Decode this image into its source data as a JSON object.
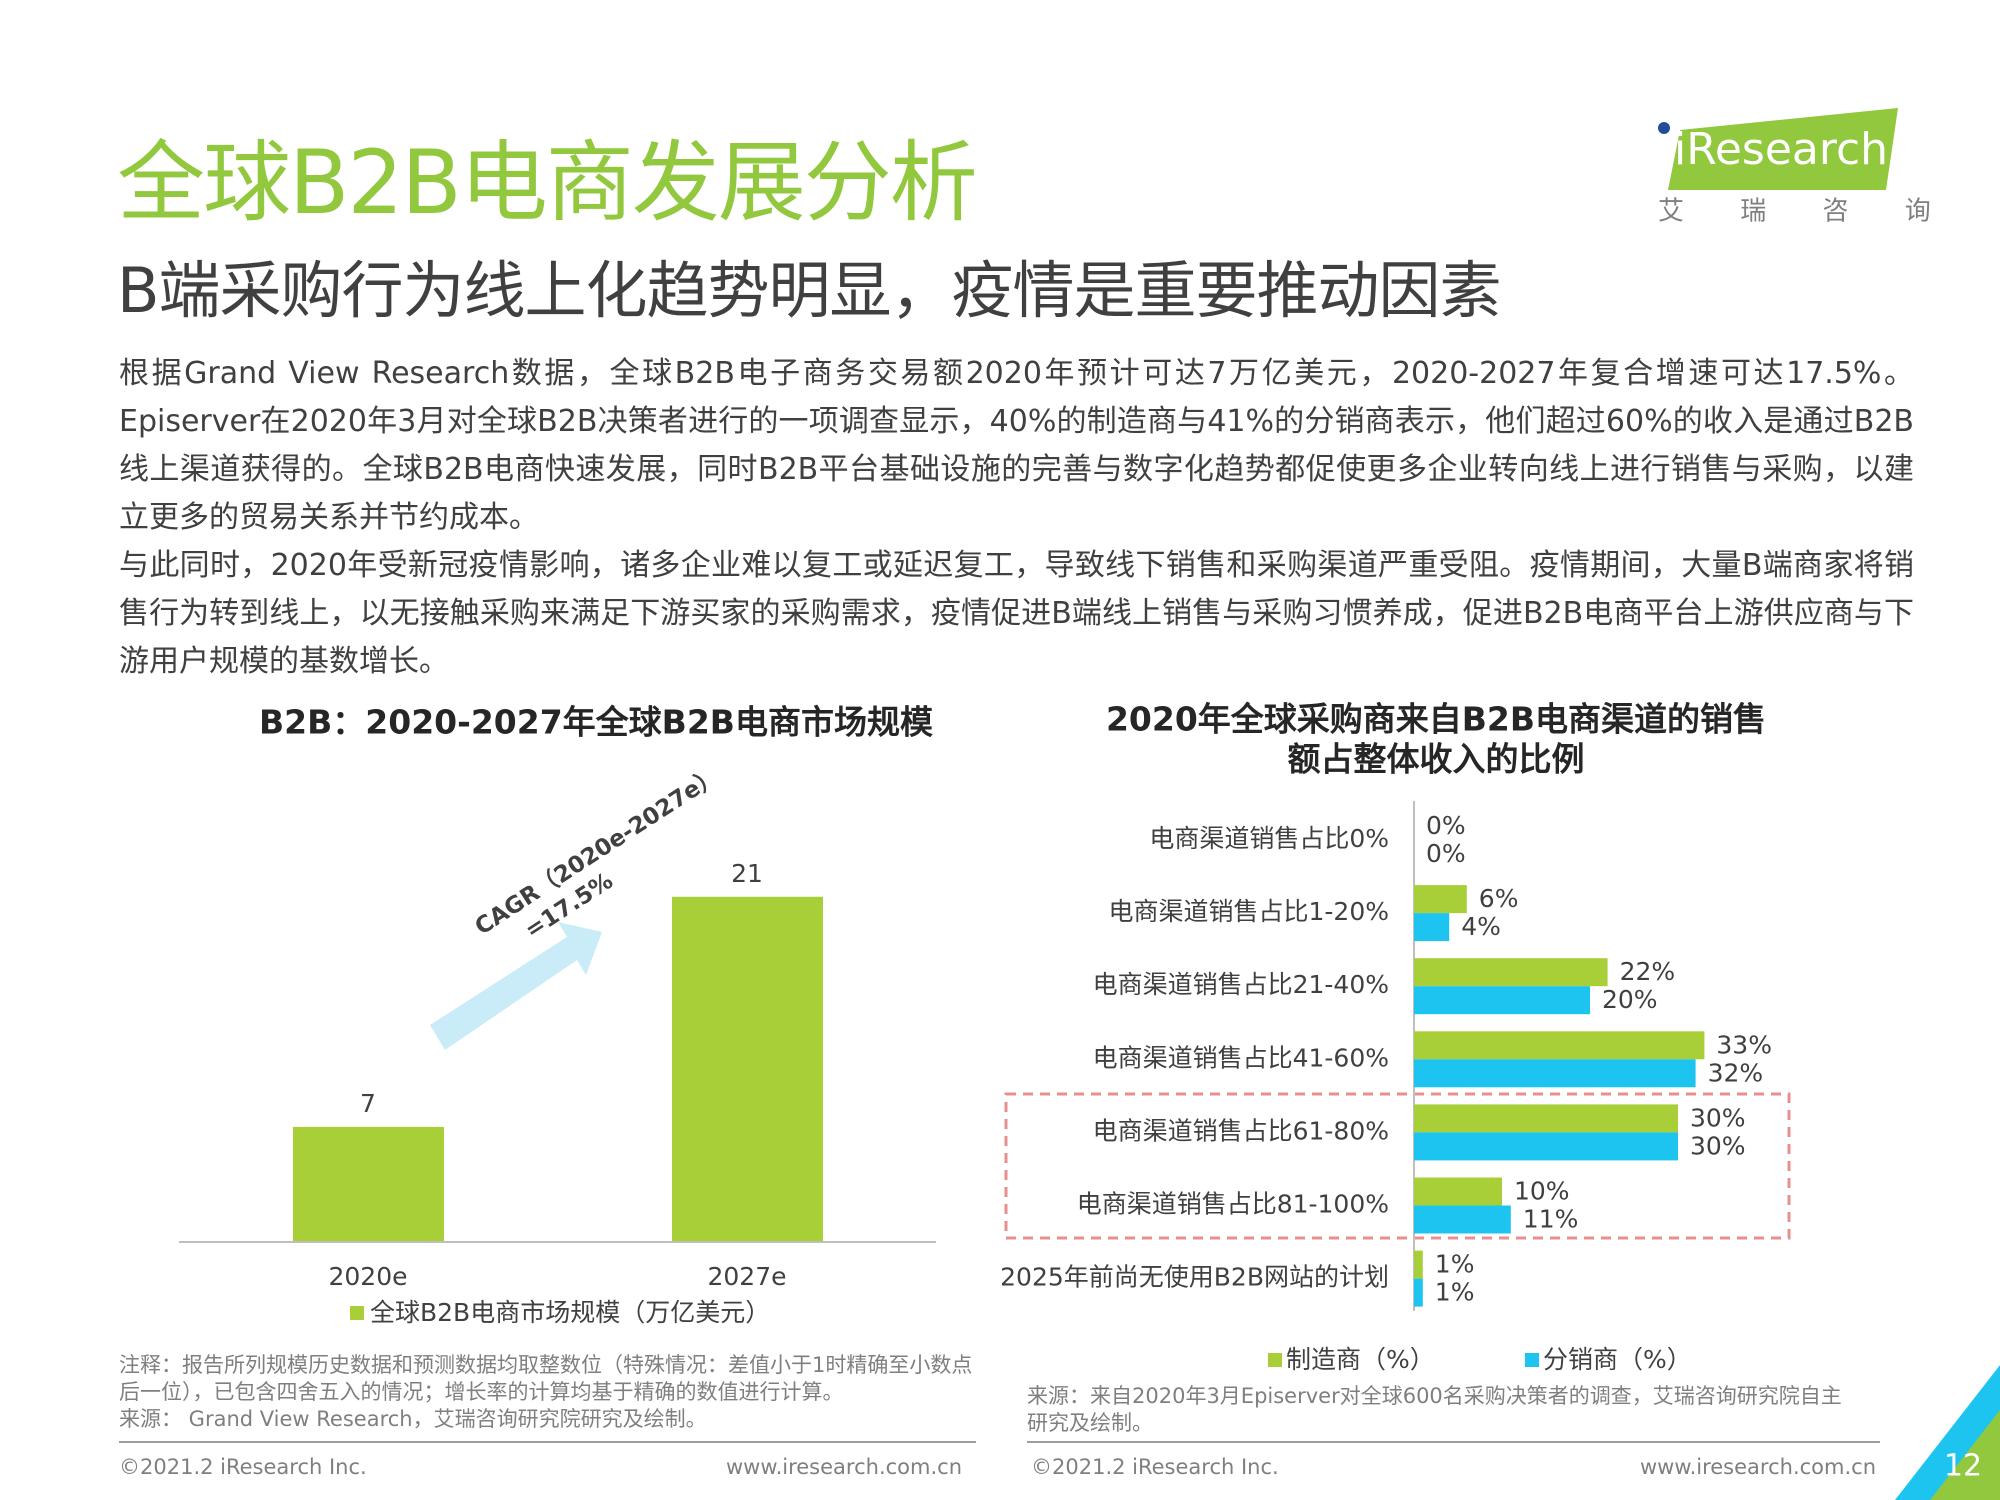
{
  "header": {
    "title": "全球B2B电商发展分析",
    "subtitle": "B端采购行为线上化趋势明显，疫情是重要推动因素",
    "logo": "iResearch",
    "logo_sub": "艾 瑞 咨 询"
  },
  "body": {
    "paragraphs": [
      "根据Grand View Research数据，全球B2B电子商务交易额2020年预计可达7万亿美元，2020-2027年复合增速可达17.5%。Episerver在2020年3月对全球B2B决策者进行的一项调查显示，40%的制造商与41%的分销商表示，他们超过60%的收入是通过B2B线上渠道获得的。全球B2B电商快速发展，同时B2B平台基础设施的完善与数字化趋势都促使更多企业转向线上进行销售与采购，以建立更多的贸易关系并节约成本。",
      "与此同时，2020年受新冠疫情影响，诸多企业难以复工或延迟复工，导致线下销售和采购渠道严重受阻。疫情期间，大量B端商家将销售行为转到线上，以无接触采购来满足下游买家的采购需求，疫情促进B端线上销售与采购习惯养成，促进B2B电商平台上游供应商与下游用户规模的基数增长。"
    ]
  },
  "chart_data": [
    {
      "type": "bar",
      "title": "B2B：2020-2027年全球B2B电商市场规模",
      "categories": [
        "2020e",
        "2027e"
      ],
      "series": [
        {
          "name": "全球B2B电商市场规模（万亿美元）",
          "color": "#a9cf38",
          "values": [
            7,
            21
          ]
        }
      ],
      "annotation": [
        "CAGR（2020e-2027e）",
        "=17.5%"
      ],
      "ylim": [
        0,
        25
      ]
    },
    {
      "type": "bar",
      "orientation": "horizontal",
      "title": [
        "2020年全球采购商来自B2B电商渠道的销售",
        "额占整体收入的比例"
      ],
      "categories": [
        "电商渠道销售占比0%",
        "电商渠道销售占比1-20%",
        "电商渠道销售占比21-40%",
        "电商渠道销售占比41-60%",
        "电商渠道销售占比61-80%",
        "电商渠道销售占比81-100%",
        "2025年前尚无使用B2B网站的计划"
      ],
      "series": [
        {
          "name": "制造商（%）",
          "color": "#a9cf38",
          "values": [
            0,
            6,
            22,
            33,
            30,
            10,
            1
          ],
          "value_labels": [
            "0%",
            "6%",
            "22%",
            "33%",
            "30%",
            "10%",
            "1%"
          ]
        },
        {
          "name": "分销商（%）",
          "color": "#1ec4f0",
          "values": [
            0,
            4,
            20,
            32,
            30,
            11,
            1
          ],
          "value_labels": [
            "0%",
            "4%",
            "20%",
            "32%",
            "30%",
            "11%",
            "1%"
          ]
        }
      ],
      "xlim": [
        0,
        45
      ]
    }
  ],
  "notes": {
    "left": [
      "注释：报告所列规模历史数据和预测数据均取整数位（特殊情况：差值小于1时精确至小数点后一位），已包含四舍五入的情况；增长率的计算均基于精确的数值进行计算。",
      "来源： Grand View Research，艾瑞咨询研究院研究及绘制。"
    ],
    "right": [
      "来源：来自2020年3月Episerver对全球600名采购决策者的调查，艾瑞咨询研究院自主研究及绘制。"
    ]
  },
  "footer": {
    "copyright": "©2021.2 iResearch Inc.",
    "website": "www.iresearch.com.cn",
    "page_number": "12"
  }
}
